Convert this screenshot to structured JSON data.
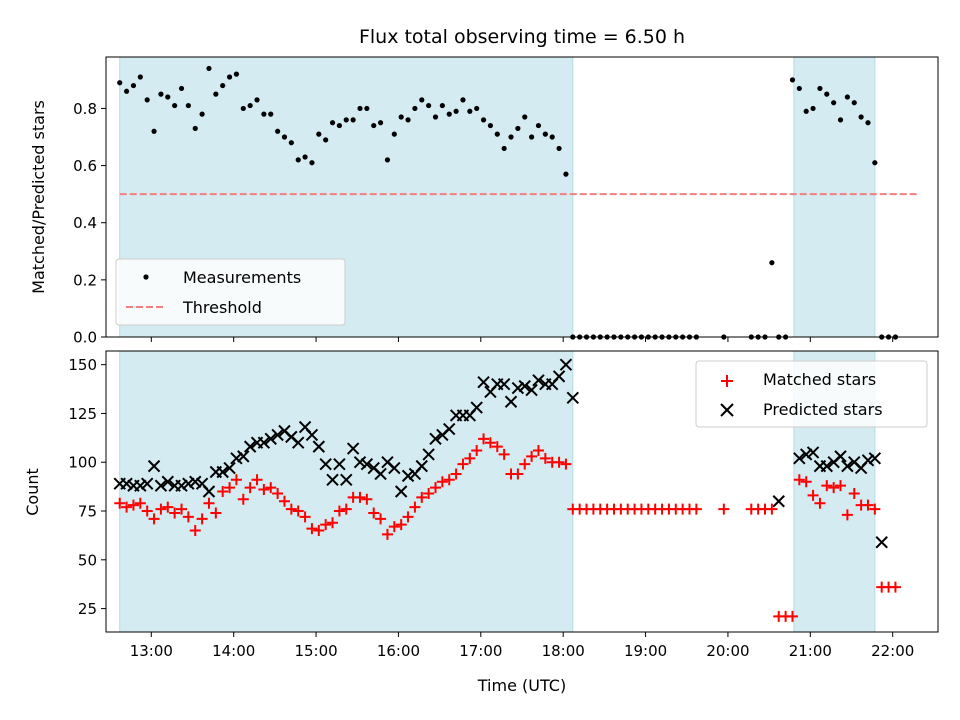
{
  "chart_data": [
    {
      "type": "scatter",
      "title": "Flux total observing time = 6.50 h",
      "xlabel": "",
      "ylabel": "Matched/Predicted stars",
      "xlim": [
        "12:27",
        "22:33"
      ],
      "ylim": [
        0,
        0.98
      ],
      "yticks": [
        "0.0",
        "0.2",
        "0.4",
        "0.6",
        "0.8"
      ],
      "observing_windows": [
        [
          "12:37",
          "18:07"
        ],
        [
          "20:48",
          "21:47"
        ]
      ],
      "window_color": "#d4ebf1",
      "threshold": {
        "name": "Threshold",
        "y": 0.5,
        "x": [
          "12:37",
          "22:18"
        ],
        "color": "#f08080",
        "style": "dashed"
      },
      "legend": {
        "position": "lower-left",
        "entries": [
          "Measurements",
          "Threshold"
        ]
      },
      "series": [
        {
          "name": "Measurements",
          "marker": "dot",
          "color": "#000000",
          "x": [
            "12:37",
            "12:42",
            "12:47",
            "12:52",
            "12:57",
            "13:02",
            "13:07",
            "13:12",
            "13:17",
            "13:22",
            "13:27",
            "13:32",
            "13:37",
            "13:42",
            "13:47",
            "13:52",
            "13:57",
            "14:02",
            "14:07",
            "14:12",
            "14:17",
            "14:22",
            "14:27",
            "14:32",
            "14:37",
            "14:42",
            "14:47",
            "14:52",
            "14:57",
            "15:02",
            "15:07",
            "15:12",
            "15:17",
            "15:22",
            "15:27",
            "15:32",
            "15:37",
            "15:42",
            "15:47",
            "15:52",
            "15:57",
            "16:02",
            "16:07",
            "16:12",
            "16:17",
            "16:22",
            "16:27",
            "16:32",
            "16:37",
            "16:42",
            "16:47",
            "16:52",
            "16:57",
            "17:02",
            "17:07",
            "17:12",
            "17:17",
            "17:22",
            "17:27",
            "17:32",
            "17:37",
            "17:42",
            "17:47",
            "17:52",
            "17:57",
            "18:02",
            "18:07",
            "18:12",
            "18:17",
            "18:22",
            "18:27",
            "18:32",
            "18:37",
            "18:42",
            "18:47",
            "18:52",
            "18:57",
            "19:02",
            "19:07",
            "19:12",
            "19:17",
            "19:22",
            "19:27",
            "19:32",
            "19:37",
            "19:57",
            "20:17",
            "20:22",
            "20:27",
            "20:32",
            "20:37",
            "20:42",
            "20:47",
            "20:52",
            "20:57",
            "21:02",
            "21:07",
            "21:12",
            "21:17",
            "21:22",
            "21:27",
            "21:32",
            "21:37",
            "21:42",
            "21:47",
            "21:52",
            "21:57",
            "22:02"
          ],
          "y": [
            0.89,
            0.86,
            0.88,
            0.91,
            0.83,
            0.72,
            0.85,
            0.84,
            0.81,
            0.87,
            0.81,
            0.73,
            0.78,
            0.94,
            0.85,
            0.88,
            0.91,
            0.92,
            0.8,
            0.81,
            0.83,
            0.78,
            0.78,
            0.72,
            0.7,
            0.68,
            0.62,
            0.63,
            0.61,
            0.71,
            0.69,
            0.75,
            0.74,
            0.76,
            0.76,
            0.8,
            0.8,
            0.74,
            0.75,
            0.62,
            0.71,
            0.77,
            0.76,
            0.8,
            0.83,
            0.81,
            0.77,
            0.81,
            0.78,
            0.79,
            0.83,
            0.79,
            0.8,
            0.76,
            0.74,
            0.71,
            0.66,
            0.7,
            0.73,
            0.77,
            0.7,
            0.74,
            0.71,
            0.7,
            0.66,
            0.57,
            0.0,
            0.0,
            0.0,
            0.0,
            0.0,
            0.0,
            0.0,
            0.0,
            0.0,
            0.0,
            0.0,
            0.0,
            0.0,
            0.0,
            0.0,
            0.0,
            0.0,
            0.0,
            0.0,
            0.0,
            0.0,
            0.0,
            0.0,
            0.26,
            0.0,
            0.0,
            0.9,
            0.87,
            0.79,
            0.8,
            0.87,
            0.85,
            0.82,
            0.76,
            0.84,
            0.82,
            0.77,
            0.75,
            0.61,
            0.0,
            0.0,
            0.0
          ]
        }
      ]
    },
    {
      "type": "scatter",
      "title": "",
      "xlabel": "Time (UTC)",
      "ylabel": "Count",
      "xlim": [
        "12:27",
        "22:33"
      ],
      "ylim": [
        13,
        157
      ],
      "xticks": [
        "13:00",
        "14:00",
        "15:00",
        "16:00",
        "17:00",
        "18:00",
        "19:00",
        "20:00",
        "21:00",
        "22:00"
      ],
      "yticks": [
        "25",
        "50",
        "75",
        "100",
        "125",
        "150"
      ],
      "observing_windows": [
        [
          "12:37",
          "18:07"
        ],
        [
          "20:48",
          "21:47"
        ]
      ],
      "window_color": "#d4ebf1",
      "legend": {
        "position": "upper-right",
        "entries": [
          "Matched stars",
          "Predicted stars"
        ]
      },
      "series": [
        {
          "name": "Matched stars",
          "marker": "plus",
          "color": "#ff0000",
          "x": [
            "12:37",
            "12:42",
            "12:47",
            "12:52",
            "12:57",
            "13:02",
            "13:07",
            "13:12",
            "13:17",
            "13:22",
            "13:27",
            "13:32",
            "13:37",
            "13:42",
            "13:47",
            "13:52",
            "13:57",
            "14:02",
            "14:07",
            "14:12",
            "14:17",
            "14:22",
            "14:27",
            "14:32",
            "14:37",
            "14:42",
            "14:47",
            "14:52",
            "14:57",
            "15:02",
            "15:07",
            "15:12",
            "15:17",
            "15:22",
            "15:27",
            "15:32",
            "15:37",
            "15:42",
            "15:47",
            "15:52",
            "15:57",
            "16:02",
            "16:07",
            "16:12",
            "16:17",
            "16:22",
            "16:27",
            "16:32",
            "16:37",
            "16:42",
            "16:47",
            "16:52",
            "16:57",
            "17:02",
            "17:07",
            "17:12",
            "17:17",
            "17:22",
            "17:27",
            "17:32",
            "17:37",
            "17:42",
            "17:47",
            "17:52",
            "17:57",
            "18:02",
            "18:07",
            "18:12",
            "18:17",
            "18:22",
            "18:27",
            "18:32",
            "18:37",
            "18:42",
            "18:47",
            "18:52",
            "18:57",
            "19:02",
            "19:07",
            "19:12",
            "19:17",
            "19:22",
            "19:27",
            "19:32",
            "19:37",
            "19:57",
            "20:17",
            "20:22",
            "20:27",
            "20:32",
            "20:37",
            "20:42",
            "20:47",
            "20:52",
            "20:57",
            "21:02",
            "21:07",
            "21:12",
            "21:17",
            "21:22",
            "21:27",
            "21:32",
            "21:37",
            "21:42",
            "21:47",
            "21:52",
            "21:57",
            "22:02"
          ],
          "y": [
            79,
            77,
            78,
            79,
            75,
            71,
            76,
            77,
            74,
            76,
            72,
            65,
            71,
            79,
            74,
            85,
            87,
            91,
            81,
            87,
            91,
            86,
            87,
            84,
            80,
            76,
            75,
            72,
            66,
            65,
            68,
            69,
            75,
            76,
            82,
            82,
            81,
            74,
            71,
            63,
            67,
            68,
            72,
            77,
            82,
            84,
            87,
            90,
            91,
            94,
            99,
            102,
            106,
            112,
            110,
            108,
            104,
            94,
            94,
            99,
            103,
            106,
            102,
            100,
            100,
            99,
            76,
            76,
            76,
            76,
            76,
            76,
            76,
            76,
            76,
            76,
            76,
            76,
            76,
            76,
            76,
            76,
            76,
            76,
            76,
            76,
            76,
            76,
            76,
            76,
            21,
            21,
            21,
            91,
            90,
            83,
            79,
            88,
            87,
            88,
            73,
            84,
            78,
            78,
            76,
            36,
            36,
            36
          ]
        },
        {
          "name": "Predicted stars",
          "marker": "x",
          "color": "#000000",
          "x": [
            "12:37",
            "12:42",
            "12:47",
            "12:52",
            "12:57",
            "13:02",
            "13:07",
            "13:12",
            "13:17",
            "13:22",
            "13:27",
            "13:32",
            "13:37",
            "13:42",
            "13:47",
            "13:52",
            "13:57",
            "14:02",
            "14:07",
            "14:12",
            "14:17",
            "14:22",
            "14:27",
            "14:32",
            "14:37",
            "14:42",
            "14:47",
            "14:52",
            "14:57",
            "15:02",
            "15:07",
            "15:12",
            "15:17",
            "15:22",
            "15:27",
            "15:32",
            "15:37",
            "15:42",
            "15:47",
            "15:52",
            "15:57",
            "16:02",
            "16:07",
            "16:12",
            "16:17",
            "16:22",
            "16:27",
            "16:32",
            "16:37",
            "16:42",
            "16:47",
            "16:52",
            "16:57",
            "17:02",
            "17:07",
            "17:12",
            "17:17",
            "17:22",
            "17:27",
            "17:32",
            "17:37",
            "17:42",
            "17:47",
            "17:52",
            "17:57",
            "18:02",
            "18:07",
            "20:37",
            "20:52",
            "20:57",
            "21:02",
            "21:07",
            "21:12",
            "21:17",
            "21:22",
            "21:27",
            "21:32",
            "21:37",
            "21:42",
            "21:47",
            "21:52"
          ],
          "y": [
            89,
            89,
            88,
            88,
            89,
            98,
            88,
            90,
            88,
            88,
            89,
            90,
            89,
            85,
            95,
            95,
            97,
            102,
            103,
            108,
            110,
            110,
            112,
            114,
            116,
            113,
            110,
            118,
            114,
            108,
            99,
            91,
            99,
            91,
            107,
            100,
            99,
            97,
            94,
            100,
            97,
            85,
            93,
            94,
            98,
            104,
            112,
            114,
            117,
            124,
            124,
            124,
            128,
            141,
            136,
            140,
            140,
            131,
            138,
            139,
            137,
            142,
            140,
            140,
            144,
            150,
            133,
            80,
            102,
            104,
            105,
            98,
            98,
            100,
            103,
            98,
            100,
            97,
            101,
            102,
            59
          ]
        }
      ]
    }
  ]
}
